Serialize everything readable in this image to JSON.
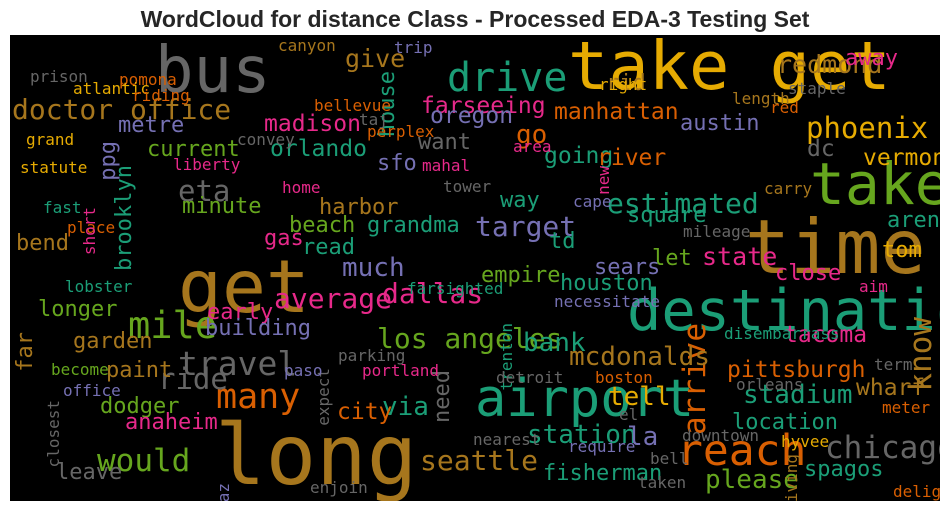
{
  "chart_data": {
    "type": "wordcloud",
    "title": "WordCloud for distance Class - Processed EDA-3 Testing Set",
    "background": "#000000",
    "words": [
      {
        "text": "long",
        "weight": 1.0,
        "color": "#a6761d"
      },
      {
        "text": "time",
        "weight": 0.88,
        "color": "#a6761d"
      },
      {
        "text": "get",
        "weight": 0.86,
        "color": "#a6761d"
      },
      {
        "text": "take get",
        "weight": 0.78,
        "color": "#e6ab02"
      },
      {
        "text": "bus",
        "weight": 0.74,
        "color": "#666666"
      },
      {
        "text": "take",
        "weight": 0.66,
        "color": "#66a61e"
      },
      {
        "text": "destination",
        "weight": 0.64,
        "color": "#1b9e77"
      },
      {
        "text": "airport",
        "weight": 0.58,
        "color": "#1b9e77"
      },
      {
        "text": "reach",
        "weight": 0.46,
        "color": "#d95f02"
      },
      {
        "text": "drive",
        "weight": 0.42,
        "color": "#1b9e77"
      },
      {
        "text": "mile",
        "weight": 0.38,
        "color": "#66a61e"
      },
      {
        "text": "many",
        "weight": 0.35,
        "color": "#d95f02"
      },
      {
        "text": "travel",
        "weight": 0.33,
        "color": "#666666"
      },
      {
        "text": "would",
        "weight": 0.3,
        "color": "#66a61e"
      },
      {
        "text": "chicago",
        "weight": 0.3,
        "color": "#666666"
      },
      {
        "text": "arrive",
        "weight": 0.3,
        "color": "#d95f02"
      },
      {
        "text": "know",
        "weight": 0.3,
        "color": "#a6761d"
      },
      {
        "text": "phoenix",
        "weight": 0.28,
        "color": "#e6ab02"
      },
      {
        "text": "ride",
        "weight": 0.28,
        "color": "#666666"
      },
      {
        "text": "eta",
        "weight": 0.28,
        "color": "#666666"
      },
      {
        "text": "doctor office",
        "weight": 0.26,
        "color": "#a6761d"
      },
      {
        "text": "seattle",
        "weight": 0.26,
        "color": "#a6761d"
      },
      {
        "text": "target",
        "weight": 0.26,
        "color": "#7570b3"
      },
      {
        "text": "average",
        "weight": 0.26,
        "color": "#e7298a"
      },
      {
        "text": "los angeles",
        "weight": 0.26,
        "color": "#66a61e"
      },
      {
        "text": "estimated",
        "weight": 0.26,
        "color": "#1b9e77"
      },
      {
        "text": "dallas",
        "weight": 0.26,
        "color": "#e7298a"
      },
      {
        "text": "bank",
        "weight": 0.24,
        "color": "#1b9e77"
      },
      {
        "text": "tell",
        "weight": 0.24,
        "color": "#e6ab02"
      },
      {
        "text": "via",
        "weight": 0.24,
        "color": "#1b9e77"
      },
      {
        "text": "mcdonalds",
        "weight": 0.24,
        "color": "#a6761d"
      },
      {
        "text": "stadium",
        "weight": 0.24,
        "color": "#1b9e77"
      },
      {
        "text": "please",
        "weight": 0.24,
        "color": "#66a61e"
      },
      {
        "text": "station",
        "weight": 0.24,
        "color": "#1b9e77"
      },
      {
        "text": "la",
        "weight": 0.24,
        "color": "#7570b3"
      },
      {
        "text": "much",
        "weight": 0.24,
        "color": "#7570b3"
      },
      {
        "text": "go",
        "weight": 0.24,
        "color": "#d95f02"
      },
      {
        "text": "give",
        "weight": 0.22,
        "color": "#a6761d"
      },
      {
        "text": "redmond",
        "weight": 0.22,
        "color": "#a6761d"
      },
      {
        "text": "state",
        "weight": 0.22,
        "color": "#e7298a"
      },
      {
        "text": "farseeing",
        "weight": 0.2,
        "color": "#e7298a"
      },
      {
        "text": "manhattan",
        "weight": 0.2,
        "color": "#d95f02"
      },
      {
        "text": "oregon",
        "weight": 0.2,
        "color": "#7570b3"
      },
      {
        "text": "city",
        "weight": 0.2,
        "color": "#d95f02"
      },
      {
        "text": "pittsburgh",
        "weight": 0.2,
        "color": "#d95f02"
      },
      {
        "text": "wharf",
        "weight": 0.2,
        "color": "#a6761d"
      },
      {
        "text": "tacoma",
        "weight": 0.2,
        "color": "#e7298a"
      },
      {
        "text": "madison",
        "weight": 0.2,
        "color": "#e7298a"
      },
      {
        "text": "orlando",
        "weight": 0.2,
        "color": "#1b9e77"
      },
      {
        "text": "going",
        "weight": 0.2,
        "color": "#1b9e77"
      },
      {
        "text": "river",
        "weight": 0.2,
        "color": "#d95f02"
      },
      {
        "text": "dc",
        "weight": 0.2,
        "color": "#666666"
      },
      {
        "text": "vermont",
        "weight": 0.2,
        "color": "#e6ab02"
      },
      {
        "text": "metre",
        "weight": 0.18,
        "color": "#7570b3"
      },
      {
        "text": "current",
        "weight": 0.18,
        "color": "#66a61e"
      },
      {
        "text": "minute",
        "weight": 0.18,
        "color": "#66a61e"
      },
      {
        "text": "harbor",
        "weight": 0.18,
        "color": "#a6761d"
      },
      {
        "text": "beach",
        "weight": 0.18,
        "color": "#66a61e"
      },
      {
        "text": "grandma",
        "weight": 0.18,
        "color": "#1b9e77"
      },
      {
        "text": "read",
        "weight": 0.18,
        "color": "#1b9e77"
      },
      {
        "text": "gas",
        "weight": 0.18,
        "color": "#e7298a"
      },
      {
        "text": "sfo",
        "weight": 0.18,
        "color": "#7570b3"
      },
      {
        "text": "want",
        "weight": 0.18,
        "color": "#666666"
      },
      {
        "text": "way",
        "weight": 0.18,
        "color": "#1b9e77"
      },
      {
        "text": "square",
        "weight": 0.18,
        "color": "#1b9e77"
      },
      {
        "text": "td",
        "weight": 0.18,
        "color": "#1b9e77"
      },
      {
        "text": "let",
        "weight": 0.18,
        "color": "#66a61e"
      },
      {
        "text": "arena",
        "weight": 0.18,
        "color": "#1b9e77"
      },
      {
        "text": "tom",
        "weight": 0.18,
        "color": "#e6ab02"
      },
      {
        "text": "close",
        "weight": 0.18,
        "color": "#e7298a"
      },
      {
        "text": "sears",
        "weight": 0.18,
        "color": "#7570b3"
      },
      {
        "text": "empire",
        "weight": 0.18,
        "color": "#66a61e"
      },
      {
        "text": "houston",
        "weight": 0.18,
        "color": "#1b9e77"
      },
      {
        "text": "austin",
        "weight": 0.18,
        "color": "#7570b3"
      },
      {
        "text": "rid",
        "weight": 0.18,
        "color": "#a6761d"
      },
      {
        "text": "away",
        "weight": 0.18,
        "color": "#e7298a"
      },
      {
        "text": "longer",
        "weight": 0.18,
        "color": "#66a61e"
      },
      {
        "text": "garden",
        "weight": 0.18,
        "color": "#a6761d"
      },
      {
        "text": "early",
        "weight": 0.18,
        "color": "#e7298a"
      },
      {
        "text": "building",
        "weight": 0.18,
        "color": "#7570b3"
      },
      {
        "text": "paint",
        "weight": 0.18,
        "color": "#a6761d"
      },
      {
        "text": "dodger",
        "weight": 0.18,
        "color": "#66a61e"
      },
      {
        "text": "anaheim",
        "weight": 0.18,
        "color": "#e7298a"
      },
      {
        "text": "leave",
        "weight": 0.18,
        "color": "#666666"
      },
      {
        "text": "need",
        "weight": 0.18,
        "color": "#666666"
      },
      {
        "text": "location",
        "weight": 0.18,
        "color": "#1b9e77"
      },
      {
        "text": "fisherman",
        "weight": 0.18,
        "color": "#1b9e77"
      },
      {
        "text": "spagos",
        "weight": 0.18,
        "color": "#1b9e77"
      },
      {
        "text": "bend",
        "weight": 0.18,
        "color": "#a6761d"
      },
      {
        "text": "brooklyn",
        "weight": 0.18,
        "color": "#1b9e77"
      },
      {
        "text": "house",
        "weight": 0.18,
        "color": "#1b9e77"
      },
      {
        "text": "ppg",
        "weight": 0.18,
        "color": "#7570b3"
      },
      {
        "text": "far",
        "weight": 0.18,
        "color": "#a6761d"
      },
      {
        "text": "pomona",
        "weight": 0.1,
        "color": "#d95f02"
      },
      {
        "text": "atlantic",
        "weight": 0.1,
        "color": "#e6ab02"
      },
      {
        "text": "riding",
        "weight": 0.1,
        "color": "#d95f02"
      },
      {
        "text": "prison",
        "weight": 0.1,
        "color": "#666666"
      },
      {
        "text": "grand",
        "weight": 0.1,
        "color": "#e6ab02"
      },
      {
        "text": "statute",
        "weight": 0.1,
        "color": "#e6ab02"
      },
      {
        "text": "fast",
        "weight": 0.1,
        "color": "#1b9e77"
      },
      {
        "text": "place",
        "weight": 0.1,
        "color": "#d95f02"
      },
      {
        "text": "short",
        "weight": 0.1,
        "color": "#e7298a"
      },
      {
        "text": "canyon",
        "weight": 0.1,
        "color": "#a6761d"
      },
      {
        "text": "trip",
        "weight": 0.1,
        "color": "#7570b3"
      },
      {
        "text": "bellevue",
        "weight": 0.1,
        "color": "#d95f02"
      },
      {
        "text": "taj",
        "weight": 0.1,
        "color": "#666666"
      },
      {
        "text": "perplex",
        "weight": 0.1,
        "color": "#d95f02"
      },
      {
        "text": "convey",
        "weight": 0.1,
        "color": "#666666"
      },
      {
        "text": "liberty",
        "weight": 0.1,
        "color": "#e7298a"
      },
      {
        "text": "home",
        "weight": 0.1,
        "color": "#e7298a"
      },
      {
        "text": "mahal",
        "weight": 0.1,
        "color": "#e7298a"
      },
      {
        "text": "tower",
        "weight": 0.1,
        "color": "#666666"
      },
      {
        "text": "area",
        "weight": 0.1,
        "color": "#e7298a"
      },
      {
        "text": "right",
        "weight": 0.1,
        "color": "#e6ab02"
      },
      {
        "text": "length",
        "weight": 0.1,
        "color": "#a6761d"
      },
      {
        "text": "staple",
        "weight": 0.1,
        "color": "#666666"
      },
      {
        "text": "red",
        "weight": 0.1,
        "color": "#d95f02"
      },
      {
        "text": "new",
        "weight": 0.1,
        "color": "#e7298a"
      },
      {
        "text": "cape",
        "weight": 0.1,
        "color": "#7570b3"
      },
      {
        "text": "mileage",
        "weight": 0.1,
        "color": "#666666"
      },
      {
        "text": "carry",
        "weight": 0.1,
        "color": "#a6761d"
      },
      {
        "text": "farsighted",
        "weight": 0.1,
        "color": "#1b9e77"
      },
      {
        "text": "necessitate",
        "weight": 0.1,
        "color": "#7570b3"
      },
      {
        "text": "aim",
        "weight": 0.1,
        "color": "#e7298a"
      },
      {
        "text": "disembarrass",
        "weight": 0.1,
        "color": "#1b9e77"
      },
      {
        "text": "term",
        "weight": 0.1,
        "color": "#666666"
      },
      {
        "text": "orleans",
        "weight": 0.1,
        "color": "#666666"
      },
      {
        "text": "meter",
        "weight": 0.1,
        "color": "#d95f02"
      },
      {
        "text": "lobster",
        "weight": 0.1,
        "color": "#1b9e77"
      },
      {
        "text": "become",
        "weight": 0.1,
        "color": "#66a61e"
      },
      {
        "text": "office",
        "weight": 0.1,
        "color": "#7570b3"
      },
      {
        "text": "closest",
        "weight": 0.1,
        "color": "#666666"
      },
      {
        "text": "expect",
        "weight": 0.1,
        "color": "#666666"
      },
      {
        "text": "parking",
        "weight": 0.1,
        "color": "#666666"
      },
      {
        "text": "portland",
        "weight": 0.1,
        "color": "#e7298a"
      },
      {
        "text": "paso",
        "weight": 0.1,
        "color": "#7570b3"
      },
      {
        "text": "trenton",
        "weight": 0.1,
        "color": "#1b9e77"
      },
      {
        "text": "detroit",
        "weight": 0.1,
        "color": "#666666"
      },
      {
        "text": "boston",
        "weight": 0.1,
        "color": "#d95f02"
      },
      {
        "text": "el",
        "weight": 0.1,
        "color": "#666666"
      },
      {
        "text": "downtown",
        "weight": 0.1,
        "color": "#666666"
      },
      {
        "text": "hyvee",
        "weight": 0.1,
        "color": "#e6ab02"
      },
      {
        "text": "nearest",
        "weight": 0.1,
        "color": "#666666"
      },
      {
        "text": "require",
        "weight": 0.1,
        "color": "#7570b3"
      },
      {
        "text": "bell",
        "weight": 0.1,
        "color": "#666666"
      },
      {
        "text": "taken",
        "weight": 0.1,
        "color": "#666666"
      },
      {
        "text": "enjoin",
        "weight": 0.1,
        "color": "#666666"
      },
      {
        "text": "az",
        "weight": 0.1,
        "color": "#7570b3"
      },
      {
        "text": "arriving",
        "weight": 0.1,
        "color": "#a6761d"
      },
      {
        "text": "delight",
        "weight": 0.1,
        "color": "#d95f02"
      }
    ]
  }
}
